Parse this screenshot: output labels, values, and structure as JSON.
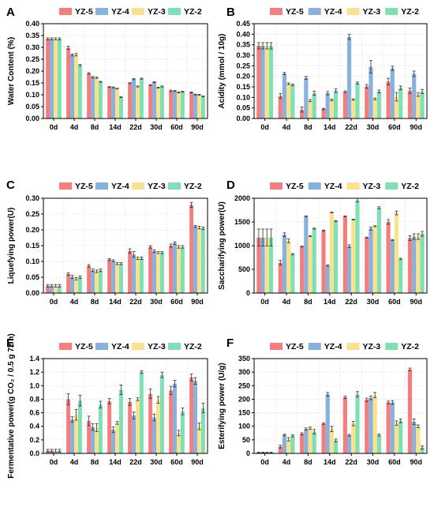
{
  "series_colors": [
    "#f47e7e",
    "#89b1dd",
    "#f8e28e",
    "#7fe0b3"
  ],
  "chart_data": [
    {
      "panel": "A",
      "type": "bar",
      "categories": [
        "0d",
        "4d",
        "8d",
        "14d",
        "22d",
        "30d",
        "60d",
        "90d"
      ],
      "ylabel": "Water Content (%)",
      "ylim": [
        0,
        0.4
      ],
      "yticks": [
        "0.00",
        "0.05",
        "0.10",
        "0.15",
        "0.20",
        "0.25",
        "0.30",
        "0.35",
        "0.40"
      ],
      "legend": [
        "YZ-5",
        "YZ-4",
        "YZ-3",
        "YZ-2"
      ],
      "series": [
        {
          "name": "YZ-5",
          "values": [
            0.336,
            0.298,
            0.19,
            0.133,
            0.149,
            0.141,
            0.117,
            0.11
          ],
          "errors": [
            0.004,
            0.007,
            0.003,
            0.002,
            0.002,
            0.002,
            0.003,
            0.002
          ]
        },
        {
          "name": "YZ-4",
          "values": [
            0.336,
            0.268,
            0.174,
            0.131,
            0.166,
            0.153,
            0.116,
            0.101
          ],
          "errors": [
            0.004,
            0.004,
            0.003,
            0.002,
            0.002,
            0.002,
            0.002,
            0.002
          ]
        },
        {
          "name": "YZ-3",
          "values": [
            0.336,
            0.269,
            0.172,
            0.126,
            0.135,
            0.13,
            0.11,
            0.1
          ],
          "errors": [
            0.004,
            0.005,
            0.003,
            0.002,
            0.002,
            0.002,
            0.002,
            0.002
          ]
        },
        {
          "name": "YZ-2",
          "values": [
            0.336,
            0.225,
            0.155,
            0.09,
            0.168,
            0.135,
            0.113,
            0.093
          ],
          "errors": [
            0.004,
            0.003,
            0.002,
            0.002,
            0.002,
            0.002,
            0.002,
            0.002
          ]
        }
      ]
    },
    {
      "panel": "B",
      "type": "bar",
      "categories": [
        "0d",
        "4d",
        "8d",
        "14d",
        "22d",
        "30d",
        "60d",
        "90d"
      ],
      "ylabel": "Acidity (mmol / 10g)",
      "ylim": [
        0,
        0.45
      ],
      "yticks": [
        "0.00",
        "0.05",
        "0.10",
        "0.15",
        "0.20",
        "0.25",
        "0.30",
        "0.35",
        "0.40",
        "0.45"
      ],
      "legend": [
        "YZ-5",
        "YZ-4",
        "YZ-3",
        "YZ-2"
      ],
      "series": [
        {
          "name": "YZ-5",
          "values": [
            0.345,
            0.107,
            0.042,
            0.045,
            0.127,
            0.152,
            0.175,
            0.132
          ],
          "errors": [
            0.015,
            0.012,
            0.012,
            0.003,
            0.004,
            0.009,
            0.016,
            0.013
          ]
        },
        {
          "name": "YZ-4",
          "values": [
            0.345,
            0.213,
            0.193,
            0.12,
            0.387,
            0.245,
            0.238,
            0.212
          ],
          "errors": [
            0.015,
            0.005,
            0.007,
            0.008,
            0.012,
            0.03,
            0.01,
            0.013
          ]
        },
        {
          "name": "YZ-3",
          "values": [
            0.345,
            0.165,
            0.085,
            0.088,
            0.09,
            0.093,
            0.103,
            0.113
          ],
          "errors": [
            0.015,
            0.004,
            0.005,
            0.004,
            0.003,
            0.004,
            0.02,
            0.008
          ]
        },
        {
          "name": "YZ-2",
          "values": [
            0.345,
            0.16,
            0.12,
            0.132,
            0.168,
            0.128,
            0.145,
            0.128
          ],
          "errors": [
            0.015,
            0.004,
            0.01,
            0.008,
            0.005,
            0.007,
            0.009,
            0.01
          ]
        }
      ]
    },
    {
      "panel": "C",
      "type": "bar",
      "categories": [
        "0d",
        "4d",
        "8d",
        "14d",
        "22d",
        "30d",
        "60d",
        "90d"
      ],
      "ylabel": "Liquefying power(U)",
      "ylim": [
        0,
        0.3
      ],
      "yticks": [
        "0.00",
        "0.05",
        "0.10",
        "0.15",
        "0.20",
        "0.25",
        "0.30"
      ],
      "legend": [
        "YZ-5",
        "YZ-4",
        "YZ-3",
        "YZ-2"
      ],
      "series": [
        {
          "name": "YZ-5",
          "values": [
            0.023,
            0.06,
            0.086,
            0.106,
            0.133,
            0.146,
            0.15,
            0.279
          ],
          "errors": [
            0.004,
            0.004,
            0.004,
            0.003,
            0.007,
            0.004,
            0.005,
            0.008
          ]
        },
        {
          "name": "YZ-4",
          "values": [
            0.023,
            0.051,
            0.072,
            0.102,
            0.122,
            0.133,
            0.158,
            0.211
          ],
          "errors": [
            0.004,
            0.005,
            0.004,
            0.003,
            0.009,
            0.004,
            0.004,
            0.003
          ]
        },
        {
          "name": "YZ-3",
          "values": [
            0.023,
            0.045,
            0.069,
            0.093,
            0.11,
            0.128,
            0.146,
            0.207
          ],
          "errors": [
            0.004,
            0.004,
            0.004,
            0.003,
            0.004,
            0.003,
            0.004,
            0.004
          ]
        },
        {
          "name": "YZ-2",
          "values": [
            0.023,
            0.05,
            0.072,
            0.093,
            0.11,
            0.128,
            0.146,
            0.205
          ],
          "errors": [
            0.004,
            0.004,
            0.004,
            0.003,
            0.004,
            0.003,
            0.004,
            0.004
          ]
        }
      ]
    },
    {
      "panel": "D",
      "type": "bar",
      "categories": [
        "0d",
        "4d",
        "8d",
        "14d",
        "22d",
        "30d",
        "60d",
        "90d"
      ],
      "ylabel": "Saccharifying power(U)",
      "ylim": [
        0,
        2000
      ],
      "yticks": [
        "0",
        "500",
        "1000",
        "1500",
        "2000"
      ],
      "legend": [
        "YZ-5",
        "YZ-4",
        "YZ-3",
        "YZ-2"
      ],
      "series": [
        {
          "name": "YZ-5",
          "values": [
            1170,
            640,
            980,
            1320,
            1620,
            1170,
            1500,
            1160
          ],
          "errors": [
            180,
            50,
            10,
            10,
            10,
            10,
            50,
            50
          ]
        },
        {
          "name": "YZ-4",
          "values": [
            1170,
            1230,
            1620,
            580,
            990,
            1360,
            1120,
            1190
          ],
          "errors": [
            180,
            40,
            10,
            15,
            30,
            30,
            10,
            60
          ]
        },
        {
          "name": "YZ-3",
          "values": [
            1170,
            1100,
            1200,
            1700,
            1550,
            1410,
            1690,
            1190
          ],
          "errors": [
            180,
            40,
            10,
            10,
            10,
            10,
            40,
            60
          ]
        },
        {
          "name": "YZ-2",
          "values": [
            1170,
            820,
            1360,
            1520,
            1960,
            1800,
            720,
            1250
          ],
          "errors": [
            180,
            15,
            10,
            10,
            40,
            20,
            15,
            50
          ]
        }
      ]
    },
    {
      "panel": "E",
      "type": "bar",
      "categories": [
        "0d",
        "4d",
        "8d",
        "14d",
        "22d",
        "30d",
        "60d",
        "90d"
      ],
      "ylabel": "Fermentative power(g CO₂ / 0.5 g 72 h)",
      "ylim": [
        0,
        1.4
      ],
      "yticks": [
        "0.0",
        "0.2",
        "0.4",
        "0.6",
        "0.8",
        "1.0",
        "1.2",
        "1.4"
      ],
      "legend": [
        "YZ-5",
        "YZ-4",
        "YZ-3",
        "YZ-2"
      ],
      "series": [
        {
          "name": "YZ-5",
          "values": [
            0.04,
            0.8,
            0.48,
            0.77,
            0.76,
            0.88,
            0.93,
            1.12
          ],
          "errors": [
            0.02,
            0.08,
            0.07,
            0.04,
            0.05,
            0.07,
            0.06,
            0.05
          ]
        },
        {
          "name": "YZ-4",
          "values": [
            0.04,
            0.5,
            0.39,
            0.35,
            0.56,
            0.53,
            1.03,
            1.07
          ],
          "errors": [
            0.02,
            0.04,
            0.05,
            0.04,
            0.05,
            0.05,
            0.05,
            0.05
          ]
        },
        {
          "name": "YZ-3",
          "values": [
            0.04,
            0.57,
            0.38,
            0.45,
            0.8,
            0.79,
            0.3,
            0.4
          ],
          "errors": [
            0.02,
            0.08,
            0.06,
            0.02,
            0.02,
            0.05,
            0.04,
            0.05
          ]
        },
        {
          "name": "YZ-2",
          "values": [
            0.04,
            0.78,
            0.72,
            0.94,
            1.2,
            1.16,
            0.62,
            0.67
          ],
          "errors": [
            0.02,
            0.08,
            0.05,
            0.07,
            0.02,
            0.04,
            0.05,
            0.07
          ]
        }
      ]
    },
    {
      "panel": "F",
      "type": "bar",
      "categories": [
        "0d",
        "4d",
        "8d",
        "14d",
        "22d",
        "30d",
        "60d",
        "90d"
      ],
      "ylabel": "Esterifying power (U/g)",
      "ylim": [
        0,
        350
      ],
      "yticks": [
        "0",
        "50",
        "100",
        "150",
        "200",
        "250",
        "300",
        "350"
      ],
      "legend": [
        "YZ-5",
        "YZ-4",
        "YZ-3",
        "YZ-2"
      ],
      "series": [
        {
          "name": "YZ-5",
          "values": [
            3,
            25,
            72,
            110,
            207,
            198,
            188,
            310
          ],
          "errors": [
            1,
            5,
            4,
            3,
            4,
            6,
            5,
            5
          ]
        },
        {
          "name": "YZ-4",
          "values": [
            3,
            68,
            90,
            218,
            67,
            205,
            188,
            117
          ],
          "errors": [
            1,
            3,
            4,
            7,
            3,
            7,
            7,
            10
          ]
        },
        {
          "name": "YZ-3",
          "values": [
            3,
            52,
            93,
            90,
            110,
            215,
            112,
            100
          ],
          "errors": [
            1,
            6,
            4,
            10,
            8,
            10,
            8,
            5
          ]
        },
        {
          "name": "YZ-2",
          "values": [
            3,
            65,
            80,
            48,
            218,
            68,
            120,
            22
          ],
          "errors": [
            1,
            4,
            8,
            5,
            10,
            4,
            7,
            6
          ]
        }
      ]
    }
  ]
}
